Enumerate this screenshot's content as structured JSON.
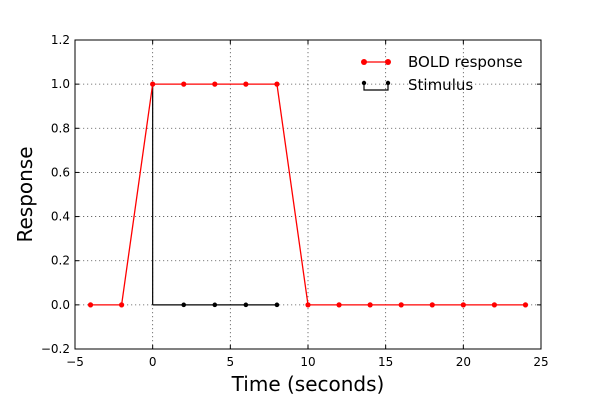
{
  "chart_data": {
    "type": "line",
    "xlabel": "Time (seconds)",
    "ylabel": "Response",
    "xlim": [
      -5,
      25
    ],
    "ylim": [
      -0.2,
      1.2
    ],
    "x_ticks": [
      -5,
      0,
      5,
      10,
      15,
      20,
      25
    ],
    "x_tick_labels": [
      "−5",
      "0",
      "5",
      "10",
      "15",
      "20",
      "25"
    ],
    "y_ticks": [
      -0.2,
      0.0,
      0.2,
      0.4,
      0.6,
      0.8,
      1.0,
      1.2
    ],
    "y_tick_labels": [
      "−0.2",
      "0.0",
      "0.2",
      "0.4",
      "0.6",
      "0.8",
      "1.0",
      "1.2"
    ],
    "grid": true,
    "legend": "top-right",
    "series": [
      {
        "name": "BOLD response",
        "color": "#ff0000",
        "style": "line-markers",
        "x": [
          -4,
          -2,
          0,
          2,
          4,
          6,
          8,
          10,
          12,
          14,
          16,
          18,
          20,
          22,
          24
        ],
        "y": [
          0,
          0,
          1,
          1,
          1,
          1,
          1,
          0,
          0,
          0,
          0,
          0,
          0,
          0,
          0
        ]
      },
      {
        "name": "Stimulus",
        "color": "#000000",
        "style": "stem",
        "x": [
          0,
          2,
          4,
          6,
          8
        ],
        "y": [
          1,
          0,
          0,
          0,
          0
        ]
      }
    ]
  }
}
